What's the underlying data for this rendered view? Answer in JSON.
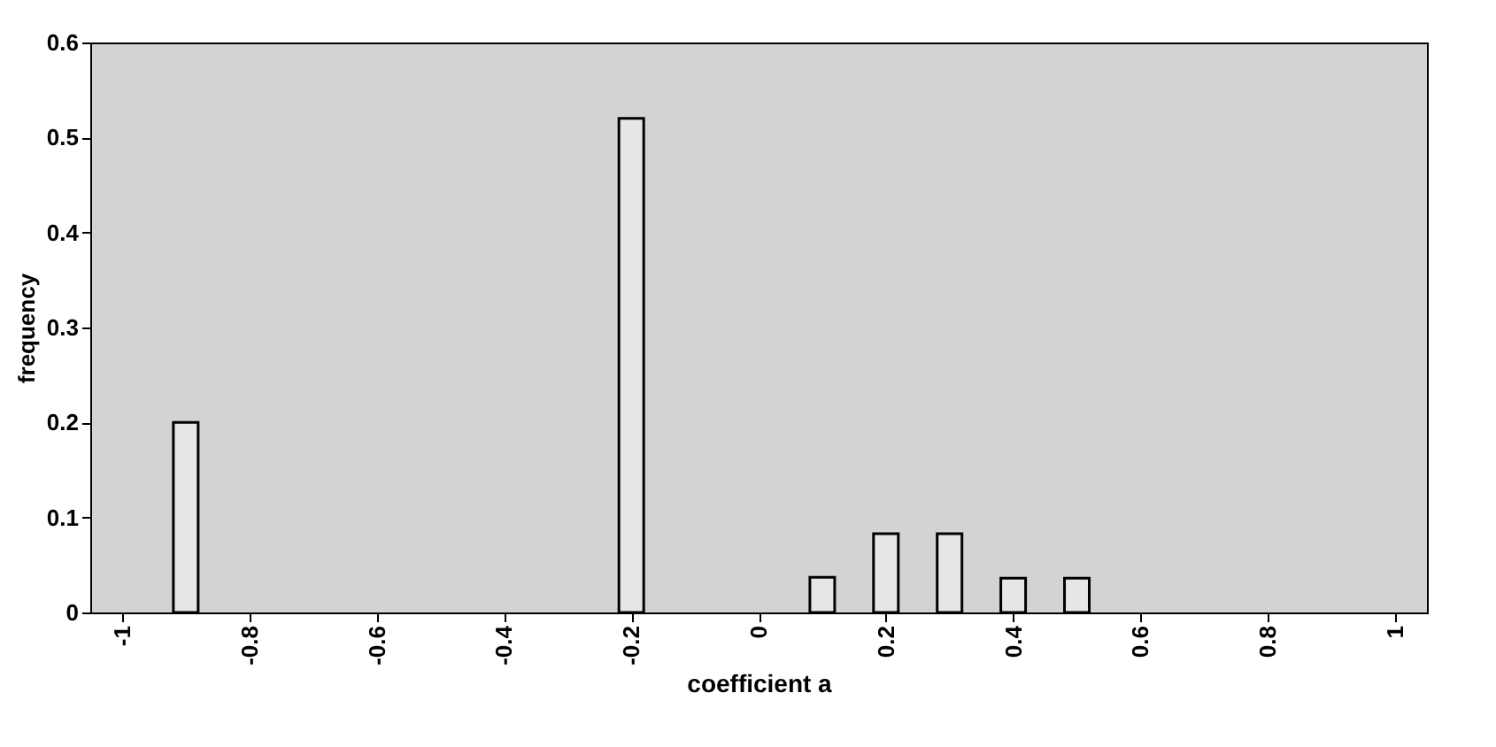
{
  "chart_data": {
    "type": "bar",
    "xlabel": "coefficient a",
    "ylabel": "frequency",
    "x": [
      -0.9,
      -0.2,
      0.1,
      0.2,
      0.3,
      0.4,
      0.5
    ],
    "values": [
      0.2,
      0.52,
      0.037,
      0.083,
      0.083,
      0.036,
      0.036
    ],
    "color": "#e6e6e6",
    "xlim": [
      -1.05,
      1.05
    ],
    "xticks": [
      -1,
      -0.8,
      -0.6,
      -0.4,
      -0.2,
      0,
      0.2,
      0.4,
      0.6,
      0.8,
      1
    ],
    "ylim": [
      0,
      0.6
    ],
    "yticks": [
      0,
      0.1,
      0.2,
      0.3,
      0.4,
      0.5,
      0.6
    ]
  }
}
